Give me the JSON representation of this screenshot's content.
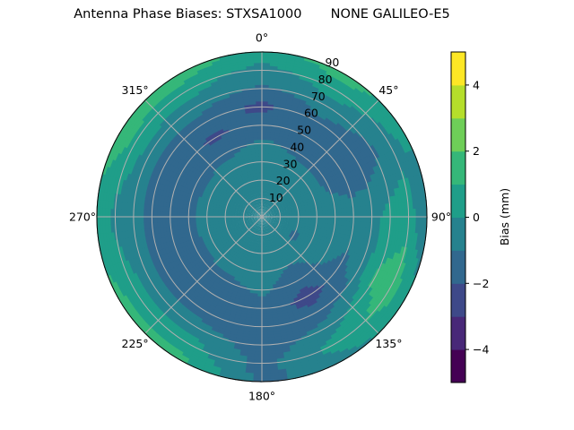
{
  "chart_data": {
    "type": "heatmap",
    "subtype": "polar-contourf",
    "title": "Antenna Phase Biases: STXSA1000       NONE GALILEO-E5",
    "theta_zero": "top",
    "theta_direction": "clockwise",
    "theta_ticks": [
      "0°",
      "45°",
      "90°",
      "135°",
      "180°",
      "225°",
      "270°",
      "315°"
    ],
    "r_ticks": [
      "10",
      "20",
      "30",
      "40",
      "50",
      "60",
      "70",
      "80",
      "90"
    ],
    "r_range": [
      0,
      90
    ],
    "grid": true,
    "azimuth_deg": [
      0,
      30,
      60,
      90,
      120,
      150,
      180,
      210,
      240,
      270,
      300,
      330
    ],
    "radius": [
      0,
      10,
      20,
      30,
      40,
      50,
      60,
      70,
      80,
      90
    ],
    "values_mm": [
      [
        -0.5,
        -0.5,
        -0.5,
        -0.5,
        -0.8,
        -1.5,
        -2.3,
        -1.2,
        -0.4,
        0.6
      ],
      [
        -0.5,
        -0.5,
        -0.5,
        -0.6,
        -1.2,
        -1.5,
        -1.2,
        -0.5,
        0.6,
        1.5
      ],
      [
        -0.5,
        -0.5,
        -0.5,
        -0.6,
        -1.3,
        -1.6,
        -1.5,
        -1.2,
        -0.4,
        0.4
      ],
      [
        -0.5,
        -0.5,
        -0.5,
        -0.5,
        -0.5,
        -0.6,
        -0.4,
        0.4,
        0.6,
        -1.2
      ],
      [
        -0.5,
        -0.5,
        -1.2,
        -0.6,
        -0.7,
        -1.2,
        -0.6,
        1.2,
        1.6,
        0.4
      ],
      [
        -0.5,
        -0.5,
        -0.6,
        -1.0,
        -1.6,
        -2.5,
        -1.6,
        -0.6,
        0.4,
        -0.4
      ],
      [
        -0.5,
        -0.5,
        -0.5,
        -0.6,
        -0.8,
        -1.3,
        -1.6,
        -1.5,
        -1.4,
        -1.3
      ],
      [
        -0.5,
        -0.5,
        -0.5,
        -0.6,
        -1.3,
        -1.5,
        -1.5,
        -0.5,
        0.6,
        1.4
      ],
      [
        -0.5,
        -0.5,
        -0.5,
        -0.6,
        -1.4,
        -1.6,
        -1.4,
        -0.5,
        0.6,
        1.3
      ],
      [
        -0.5,
        -0.5,
        -0.5,
        -0.6,
        -1.3,
        -1.5,
        -1.4,
        -0.6,
        -0.3,
        0.6
      ],
      [
        -0.5,
        -0.5,
        -0.5,
        -0.6,
        -1.4,
        -1.6,
        -1.4,
        -0.5,
        0.8,
        1.6
      ],
      [
        -0.5,
        -0.5,
        -0.5,
        -0.6,
        -1.3,
        -2.2,
        -1.5,
        -0.5,
        0.5,
        1.6
      ]
    ],
    "levels": [
      -5,
      -4,
      -3,
      -2,
      -1,
      0,
      1,
      2,
      3,
      4,
      5
    ],
    "colormap": "viridis",
    "level_colors": [
      "#440154",
      "#482878",
      "#3e4989",
      "#31688e",
      "#26828e",
      "#1f9e89",
      "#35b779",
      "#6ece58",
      "#b5de2b",
      "#fde725"
    ],
    "colorbar": {
      "label": "Bias (mm)",
      "range": [
        -5,
        5
      ],
      "ticks": [
        4,
        2,
        0,
        -2,
        -4
      ],
      "tick_labels": [
        "4",
        "2",
        "0",
        "−2",
        "−4"
      ]
    }
  }
}
